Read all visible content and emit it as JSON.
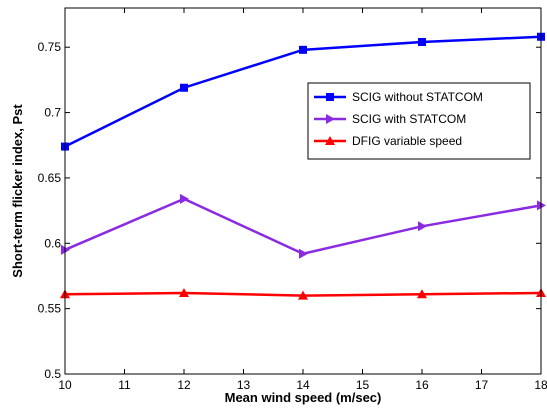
{
  "chart_data": {
    "type": "line",
    "xlabel": "Mean wind speed (m/sec)",
    "ylabel": "Short-term flicker index, Pst",
    "xlim": [
      10,
      18
    ],
    "ylim": [
      0.5,
      0.78
    ],
    "x_ticks": [
      10,
      11,
      12,
      13,
      14,
      15,
      16,
      17,
      18
    ],
    "x_tick_labels": [
      "10",
      "11",
      "12",
      "13",
      "14",
      "15",
      "16",
      "17",
      "18"
    ],
    "y_ticks": [
      0.5,
      0.55,
      0.6,
      0.65,
      0.7,
      0.75
    ],
    "y_tick_labels": [
      "0.5",
      "0.55",
      "0.6",
      "0.65",
      "0.7",
      "0.75"
    ],
    "grid": false,
    "legend_position": "right",
    "series": [
      {
        "name": "SCIG without STATCOM",
        "color": "#0000ff",
        "marker": "square",
        "x": [
          10,
          12,
          14,
          16,
          18
        ],
        "values": [
          0.674,
          0.719,
          0.748,
          0.754,
          0.758
        ]
      },
      {
        "name": "SCIG with STATCOM",
        "color": "#8a2be2",
        "marker": "triangle-right",
        "x": [
          10,
          12,
          14,
          16,
          18
        ],
        "values": [
          0.595,
          0.634,
          0.592,
          0.613,
          0.629
        ]
      },
      {
        "name": "DFIG variable speed",
        "color": "#ff0000",
        "marker": "triangle-up",
        "x": [
          10,
          12,
          14,
          16,
          18
        ],
        "values": [
          0.561,
          0.562,
          0.56,
          0.561,
          0.562
        ]
      }
    ]
  }
}
